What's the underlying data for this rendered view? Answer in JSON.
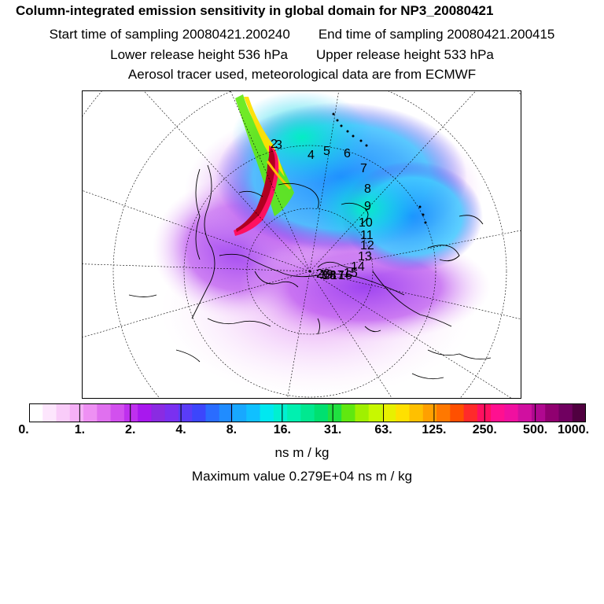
{
  "header": {
    "title": "Column-integrated emission sensitivity in global domain for NP3_20080421",
    "start": "Start time of sampling 20080421.200240",
    "end": "End time of sampling 20080421.200415",
    "lower": "Lower release height  536 hPa",
    "upper": "Upper release height  533 hPa",
    "tracer": "Aerosol tracer used, meteorological data are from ECMWF"
  },
  "colorbar": {
    "colors": [
      "#ffffff",
      "#fde6fd",
      "#f9ccf9",
      "#f5b0f7",
      "#ee90f3",
      "#e070ef",
      "#d250ee",
      "#bf30ee",
      "#a818ee",
      "#8a2be2",
      "#7a30f0",
      "#5a3cf8",
      "#3c46fc",
      "#2a6cff",
      "#208cff",
      "#18a8ff",
      "#10c0ff",
      "#00e8f0",
      "#00f0d0",
      "#00f0b0",
      "#00e890",
      "#00e070",
      "#20e040",
      "#60e810",
      "#a0f000",
      "#c8f800",
      "#e8f000",
      "#ffe000",
      "#ffc000",
      "#ffa000",
      "#ff7800",
      "#ff5000",
      "#ff2a2a",
      "#ff1060",
      "#ff1090",
      "#f010a0",
      "#d010a0",
      "#b00890",
      "#900070",
      "#700060",
      "#500040"
    ],
    "tick_labels": [
      "0.",
      "1.",
      "2.",
      "4.",
      "8.",
      "16.",
      "31.",
      "63.",
      "125.",
      "250.",
      "500.",
      "1000."
    ],
    "units": "ns m / kg",
    "max_value": "Maximum value  0.279E+04 ns m / kg"
  },
  "map": {
    "track_labels": [
      "2",
      "3",
      "4",
      "5",
      "6",
      "7",
      "8",
      "9",
      "10",
      "11",
      "12",
      "13",
      "14",
      "15",
      "16",
      "17",
      "18",
      "19",
      "20"
    ],
    "colors": {
      "plume_core": "#b00020",
      "plume_edge": "#ff1060"
    }
  }
}
